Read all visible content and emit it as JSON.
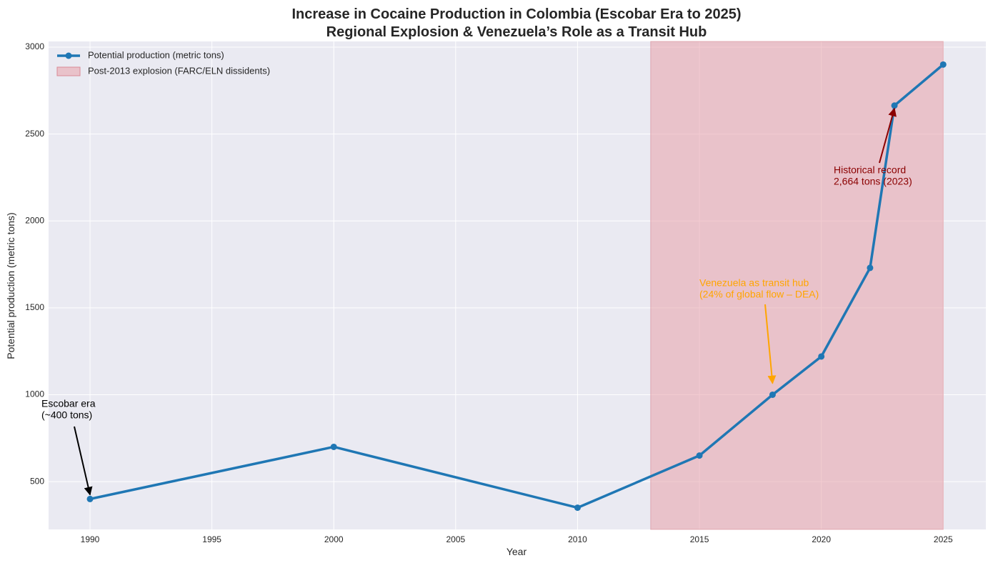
{
  "chart_data": {
    "type": "line",
    "title": [
      "Increase in Cocaine Production in Colombia (Escobar Era to 2025)",
      "Regional Explosion & Venezuela’s Role as a Transit Hub"
    ],
    "xlabel": "Year",
    "ylabel": "Potential production (metric tons)",
    "x": [
      1990,
      2000,
      2010,
      2015,
      2018,
      2020,
      2022,
      2023,
      2025
    ],
    "series": [
      {
        "name": "Potential production (metric tons)",
        "color": "#1f77b4",
        "values": [
          400,
          700,
          350,
          650,
          1000,
          1220,
          1730,
          2664,
          2900
        ]
      }
    ],
    "span": {
      "name": "Post-2013 explosion (FARC/ELN dissidents)",
      "x": [
        2013,
        2025
      ],
      "color": "#e8a0aa"
    },
    "xlim": [
      1988.3,
      2026.75
    ],
    "ylim": [
      225,
      3033
    ],
    "xticks": [
      1990,
      1995,
      2000,
      2005,
      2010,
      2015,
      2020,
      2025
    ],
    "yticks": [
      500,
      1000,
      1500,
      2000,
      2500,
      3000
    ],
    "grid": true,
    "legend": "upper-left",
    "annotations": [
      {
        "text": [
          "Escobar era",
          "(~400 tons)"
        ],
        "color": "#000000"
      },
      {
        "text": [
          "Venezuela as transit hub",
          "(24% of global flow – DEA)"
        ],
        "color": "#ffa500"
      },
      {
        "text": [
          "Historical record",
          "2,664 tons (2023)"
        ],
        "color": "#8b0000"
      }
    ]
  }
}
